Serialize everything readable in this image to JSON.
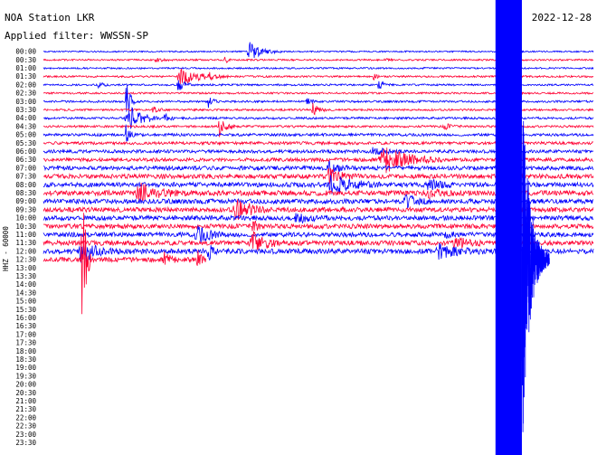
{
  "chart_data": {
    "type": "line",
    "title": "NOA Station LKR",
    "subtitle": "Applied filter: WWSSN-SP",
    "date": "2022-12-28",
    "ylabel": "HHZ - 60000",
    "tick_labels": [
      "00:00",
      "00:30",
      "01:00",
      "01:30",
      "02:00",
      "02:30",
      "03:00",
      "03:30",
      "04:00",
      "04:30",
      "05:00",
      "05:30",
      "06:00",
      "06:30",
      "07:00",
      "07:30",
      "08:00",
      "08:30",
      "09:00",
      "09:30",
      "10:00",
      "10:30",
      "11:00",
      "11:30",
      "12:00",
      "12:30",
      "13:00",
      "13:30",
      "14:00",
      "14:30",
      "15:00",
      "15:30",
      "16:00",
      "16:30",
      "17:00",
      "17:30",
      "18:00",
      "18:30",
      "19:00",
      "19:30",
      "20:00",
      "20:30",
      "21:00",
      "21:30",
      "22:00",
      "22:30",
      "23:00",
      "23:30"
    ],
    "series_colors": [
      "#0000ff",
      "#ff0033"
    ],
    "last_row_end_fraction": 0.295,
    "noise_level": [
      0.8,
      0.9,
      0.9,
      1.0,
      1.0,
      1.0,
      1.1,
      1.1,
      1.2,
      1.2,
      1.5,
      1.6,
      1.8,
      1.9,
      2.2,
      2.4,
      2.6,
      2.8,
      2.6,
      2.6,
      2.5,
      2.5,
      2.5,
      2.6,
      2.8,
      2.4
    ],
    "events": [
      {
        "row": 0,
        "x": 0.375,
        "amp": 10,
        "width": 0.02
      },
      {
        "row": 1,
        "x": 0.33,
        "amp": 6,
        "width": 0.004
      },
      {
        "row": 1,
        "x": 0.205,
        "amp": 3,
        "width": 0.01
      },
      {
        "row": 1,
        "x": 0.62,
        "amp": 2.5,
        "width": 0.006
      },
      {
        "row": 3,
        "x": 0.25,
        "amp": 10,
        "width": 0.03
      },
      {
        "row": 3,
        "x": 0.3,
        "amp": 3,
        "width": 0.01
      },
      {
        "row": 3,
        "x": 0.6,
        "amp": 4,
        "width": 0.005
      },
      {
        "row": 4,
        "x": 0.245,
        "amp": 8,
        "width": 0.01
      },
      {
        "row": 4,
        "x": 0.61,
        "amp": 6,
        "width": 0.008
      },
      {
        "row": 4,
        "x": 0.1,
        "amp": 2.5,
        "width": 0.01
      },
      {
        "row": 6,
        "x": 0.15,
        "amp": 28,
        "width": 0.006
      },
      {
        "row": 6,
        "x": 0.3,
        "amp": 6,
        "width": 0.008
      },
      {
        "row": 6,
        "x": 0.48,
        "amp": 3,
        "width": 0.01
      },
      {
        "row": 7,
        "x": 0.49,
        "amp": 7,
        "width": 0.01
      },
      {
        "row": 7,
        "x": 0.2,
        "amp": 3,
        "width": 0.01
      },
      {
        "row": 8,
        "x": 0.155,
        "amp": 14,
        "width": 0.025
      },
      {
        "row": 8,
        "x": 0.22,
        "amp": 4,
        "width": 0.01
      },
      {
        "row": 9,
        "x": 0.32,
        "amp": 10,
        "width": 0.01
      },
      {
        "row": 9,
        "x": 0.73,
        "amp": 3,
        "width": 0.01
      },
      {
        "row": 10,
        "x": 0.15,
        "amp": 10,
        "width": 0.006
      },
      {
        "row": 12,
        "x": 0.6,
        "amp": 4,
        "width": 0.02
      },
      {
        "row": 13,
        "x": 0.62,
        "amp": 14,
        "width": 0.04
      },
      {
        "row": 14,
        "x": 0.52,
        "amp": 6,
        "width": 0.015
      },
      {
        "row": 15,
        "x": 0.52,
        "amp": 8,
        "width": 0.02
      },
      {
        "row": 16,
        "x": 0.525,
        "amp": 12,
        "width": 0.03
      },
      {
        "row": 16,
        "x": 0.7,
        "amp": 5,
        "width": 0.02
      },
      {
        "row": 17,
        "x": 0.175,
        "amp": 10,
        "width": 0.03
      },
      {
        "row": 17,
        "x": 0.7,
        "amp": 4,
        "width": 0.02
      },
      {
        "row": 18,
        "x": 0.66,
        "amp": 6,
        "width": 0.02
      },
      {
        "row": 19,
        "x": 0.35,
        "amp": 12,
        "width": 0.02
      },
      {
        "row": 19,
        "x": 0.36,
        "amp": 8,
        "width": 0.01
      },
      {
        "row": 20,
        "x": 0.46,
        "amp": 6,
        "width": 0.02
      },
      {
        "row": 21,
        "x": 0.38,
        "amp": 10,
        "width": 0.006
      },
      {
        "row": 22,
        "x": 0.28,
        "amp": 10,
        "width": 0.02
      },
      {
        "row": 22,
        "x": 0.73,
        "amp": 4,
        "width": 0.01
      },
      {
        "row": 23,
        "x": 0.38,
        "amp": 14,
        "width": 0.02
      },
      {
        "row": 23,
        "x": 0.75,
        "amp": 6,
        "width": 0.02
      },
      {
        "row": 24,
        "x": 0.07,
        "amp": 14,
        "width": 0.02
      },
      {
        "row": 24,
        "x": 0.3,
        "amp": 16,
        "width": 0.006
      },
      {
        "row": 24,
        "x": 0.72,
        "amp": 8,
        "width": 0.03
      },
      {
        "row": 25,
        "x": 0.07,
        "amp": 100,
        "width": 0.006
      },
      {
        "row": 25,
        "x": 0.38,
        "amp": 26,
        "width": 0.004
      },
      {
        "row": 25,
        "x": 0.22,
        "amp": 8,
        "width": 0.01
      },
      {
        "row": 25,
        "x": 0.28,
        "amp": 10,
        "width": 0.006
      }
    ],
    "large_event": {
      "x_start": 0.822,
      "x_end": 0.87,
      "tail_end": 0.92
    }
  }
}
